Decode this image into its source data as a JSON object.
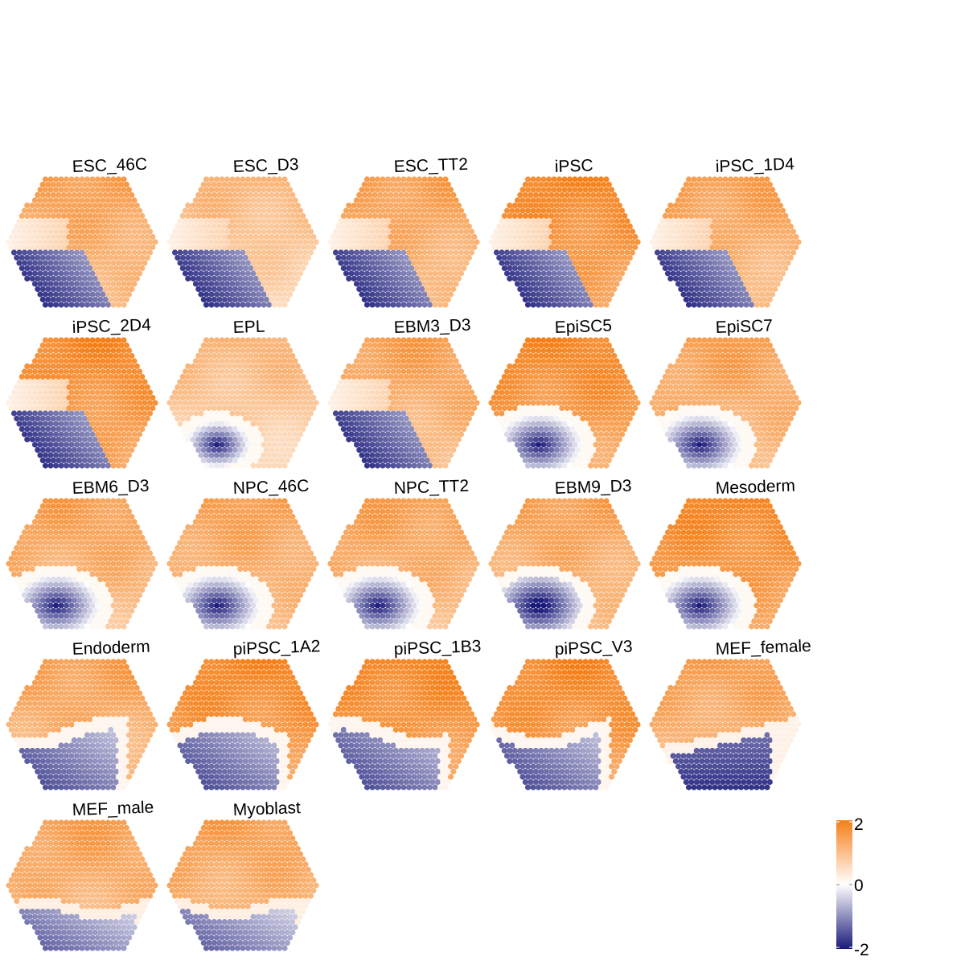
{
  "chart_data": {
    "type": "heatmap",
    "subtype": "hexagonal self-organizing map component planes",
    "layout": {
      "columns": 5,
      "rows": 5
    },
    "panels": [
      {
        "name": "ESC_46C",
        "blue_zone": "lower-left diagonal",
        "accent": "white band mid-left"
      },
      {
        "name": "ESC_D3",
        "blue_zone": "lower-left diagonal",
        "accent": "pale orange overall"
      },
      {
        "name": "ESC_TT2",
        "blue_zone": "lower-left diagonal",
        "accent": "white band mid-left"
      },
      {
        "name": "iPSC",
        "blue_zone": "lower-left diagonal",
        "accent": "strong orange upper-left"
      },
      {
        "name": "iPSC_1D4",
        "blue_zone": "lower-left diagonal",
        "accent": "blue strip left edge"
      },
      {
        "name": "iPSC_2D4",
        "blue_zone": "lower-left diagonal",
        "accent": "strong orange top"
      },
      {
        "name": "EPL",
        "blue_zone": "lower-left small",
        "accent": "pale orange overall"
      },
      {
        "name": "EBM3_D3",
        "blue_zone": "lower-left diagonal",
        "accent": "white band mid-left"
      },
      {
        "name": "EpiSC5",
        "blue_zone": "lower-left triangle",
        "accent": "strong orange top"
      },
      {
        "name": "EpiSC7",
        "blue_zone": "lower-left triangle",
        "accent": "orange overall"
      },
      {
        "name": "EBM6_D3",
        "blue_zone": "lower-left triangle",
        "accent": "orange overall"
      },
      {
        "name": "NPC_46C",
        "blue_zone": "lower-left triangle",
        "accent": "orange overall"
      },
      {
        "name": "NPC_TT2",
        "blue_zone": "lower-left triangle",
        "accent": "orange overall"
      },
      {
        "name": "EBM9_D3",
        "blue_zone": "lower-left dark",
        "accent": "orange overall"
      },
      {
        "name": "Mesoderm",
        "blue_zone": "lower-left triangle",
        "accent": "strong orange top"
      },
      {
        "name": "Endoderm",
        "blue_zone": "lower band",
        "accent": "orange overall"
      },
      {
        "name": "piPSC_1A2",
        "blue_zone": "lower band",
        "accent": "strong orange top"
      },
      {
        "name": "piPSC_1B3",
        "blue_zone": "lower band",
        "accent": "strong orange top"
      },
      {
        "name": "piPSC_V3",
        "blue_zone": "lower band",
        "accent": "strong orange top"
      },
      {
        "name": "MEF_female",
        "blue_zone": "lower-center",
        "accent": "white band lower-right"
      },
      {
        "name": "MEF_male",
        "blue_zone": "bottom band",
        "accent": "orange overall"
      },
      {
        "name": "Myoblast",
        "blue_zone": "bottom band",
        "accent": "orange overall"
      }
    ],
    "color_scale": {
      "min": -2,
      "mid": 0,
      "max": 2,
      "low_color": "#1a1a7a",
      "mid_color": "#ffffff",
      "high_color": "#f57f17",
      "ticks": [
        "2",
        "0",
        "-2"
      ]
    },
    "legend_position": "bottom-right",
    "grid": false
  },
  "colors": {
    "background": "#ffffff",
    "text": "#000000"
  }
}
